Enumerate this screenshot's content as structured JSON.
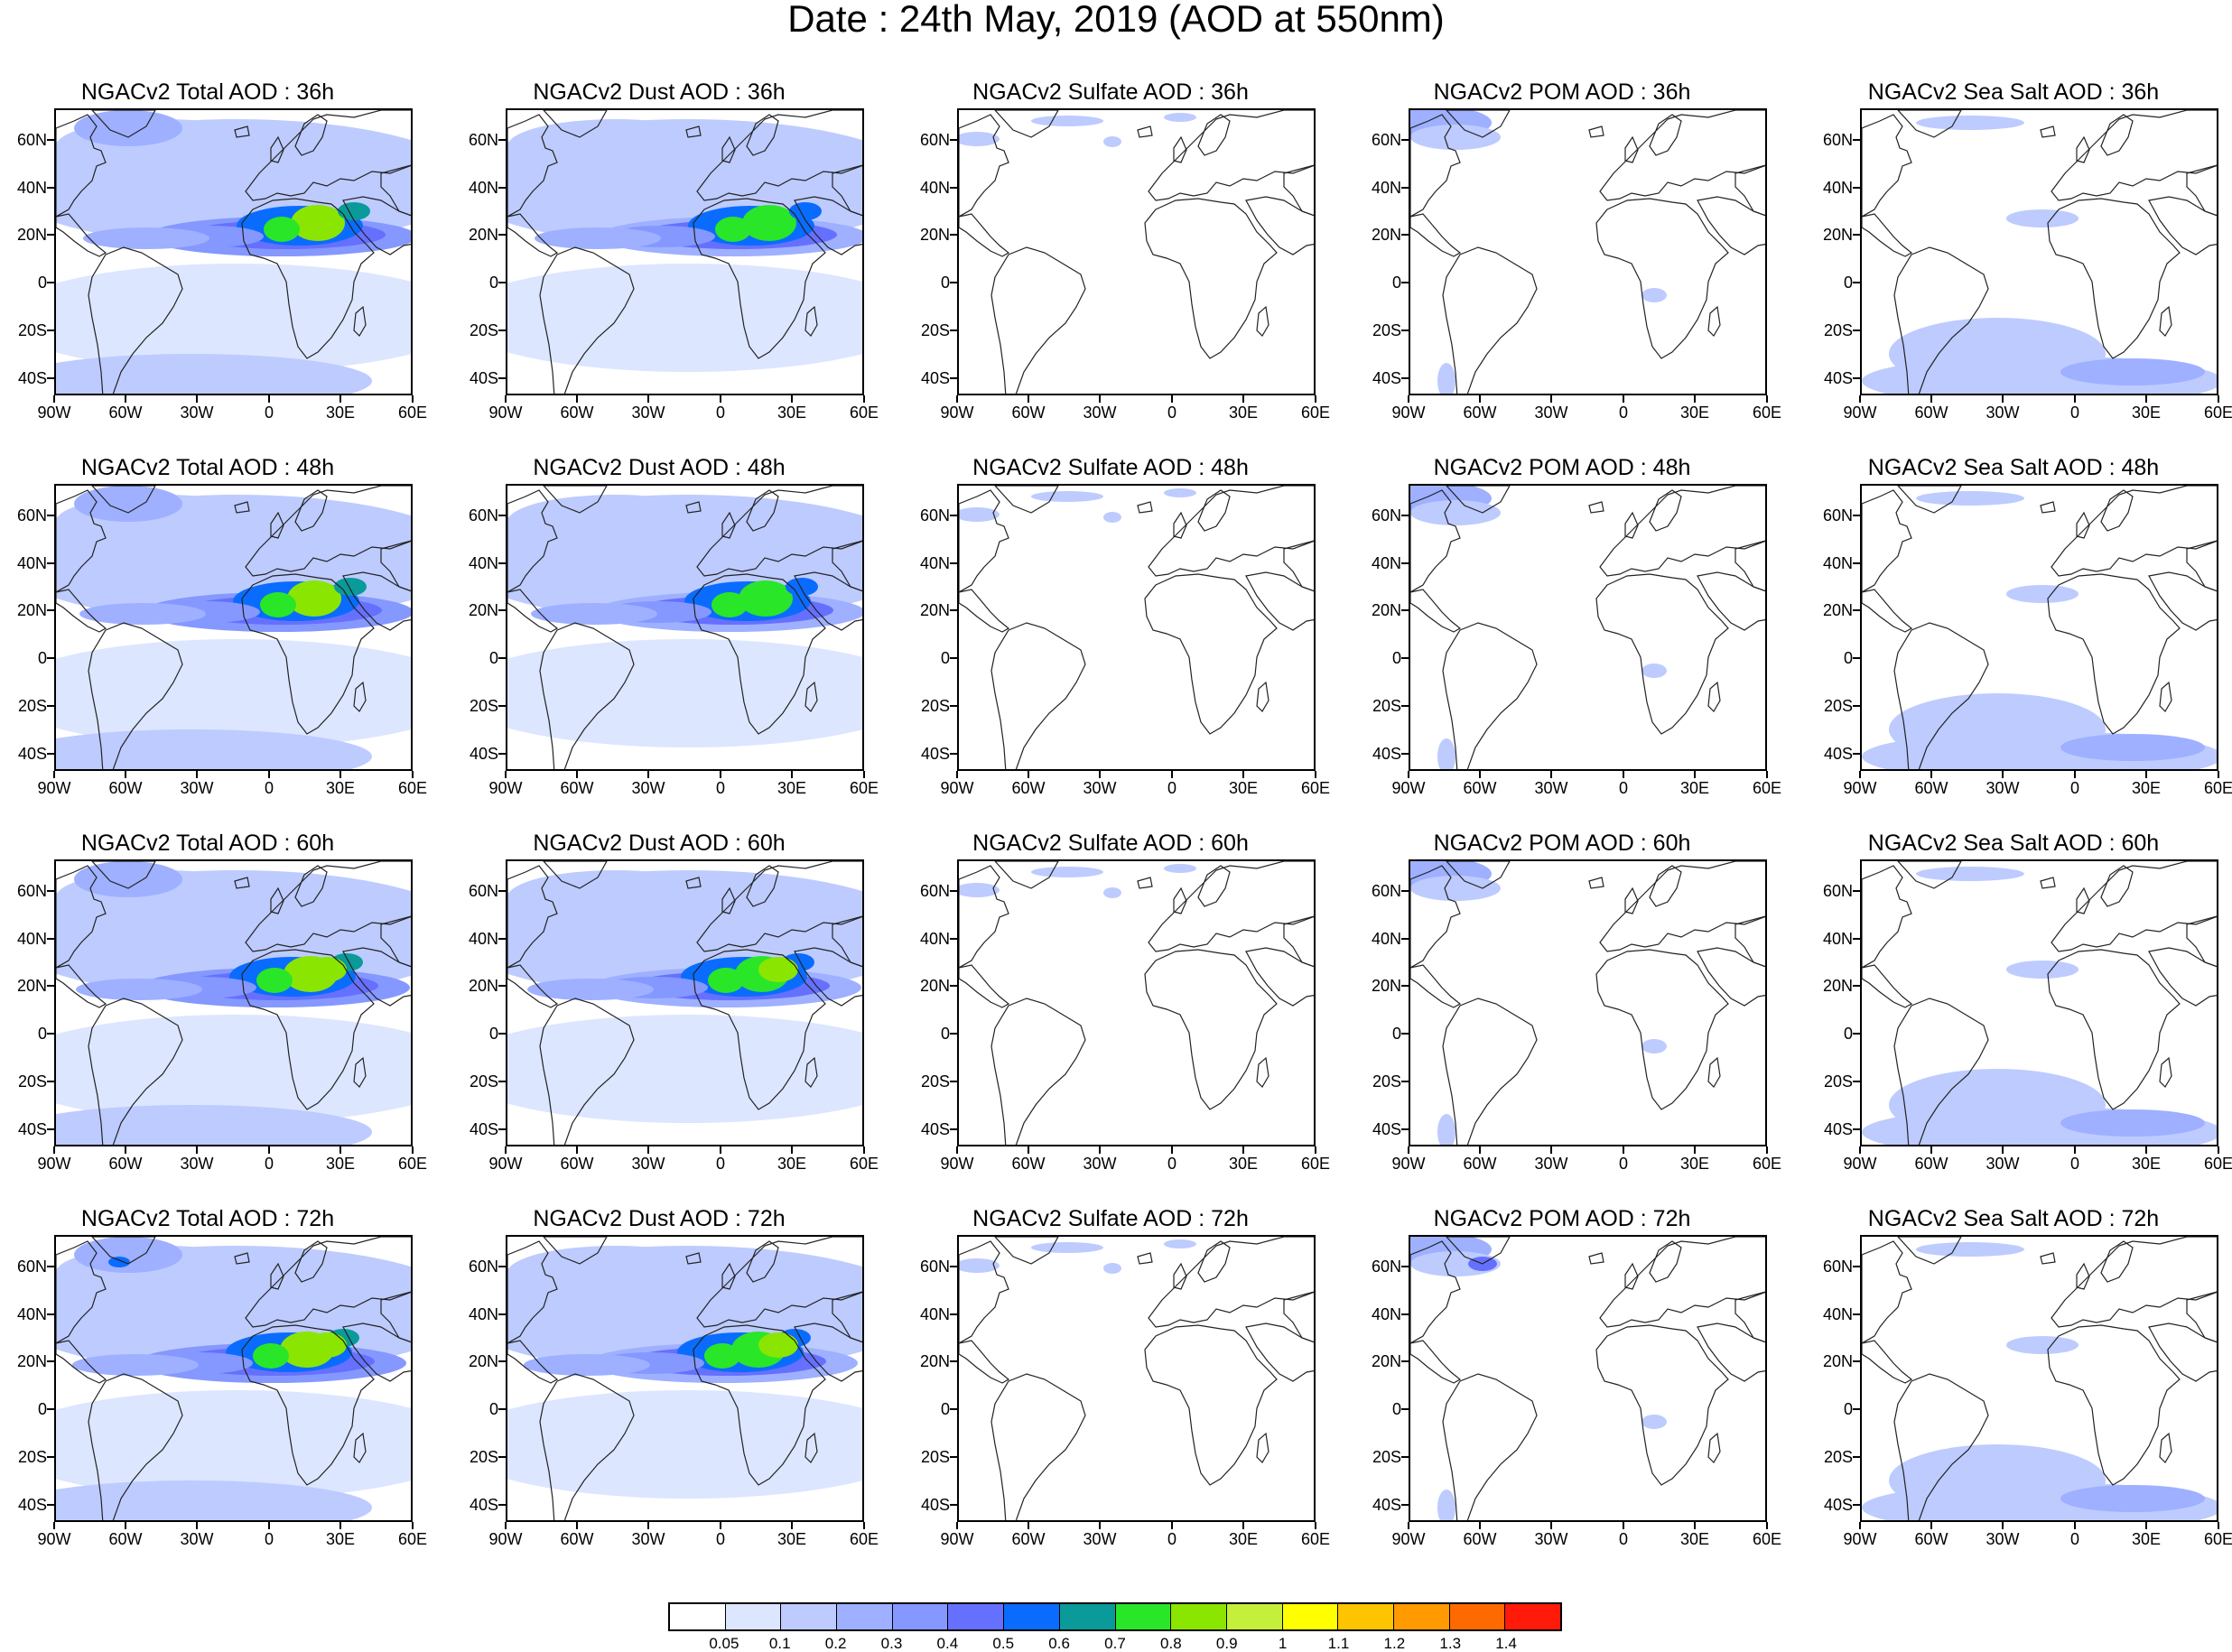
{
  "title": "Date : 24th May, 2019 (AOD at 550nm)",
  "lat_labels": [
    "60N",
    "40N",
    "20N",
    "0",
    "20S",
    "40S"
  ],
  "lon_labels": [
    "90W",
    "60W",
    "30W",
    "0",
    "30E",
    "60E"
  ],
  "panels": [
    {
      "title": "NGACv2 Total AOD : 36h",
      "species": "total",
      "lead": 36
    },
    {
      "title": "NGACv2 Dust AOD : 36h",
      "species": "dust",
      "lead": 36
    },
    {
      "title": "NGACv2 Sulfate AOD : 36h",
      "species": "sulfate",
      "lead": 36
    },
    {
      "title": "NGACv2 POM AOD : 36h",
      "species": "pom",
      "lead": 36
    },
    {
      "title": "NGACv2 Sea Salt AOD : 36h",
      "species": "seasalt",
      "lead": 36
    },
    {
      "title": "NGACv2 Total AOD : 48h",
      "species": "total",
      "lead": 48
    },
    {
      "title": "NGACv2 Dust AOD : 48h",
      "species": "dust",
      "lead": 48
    },
    {
      "title": "NGACv2 Sulfate AOD : 48h",
      "species": "sulfate",
      "lead": 48
    },
    {
      "title": "NGACv2 POM AOD : 48h",
      "species": "pom",
      "lead": 48
    },
    {
      "title": "NGACv2 Sea Salt AOD : 48h",
      "species": "seasalt",
      "lead": 48
    },
    {
      "title": "NGACv2 Total AOD : 60h",
      "species": "total",
      "lead": 60
    },
    {
      "title": "NGACv2 Dust AOD : 60h",
      "species": "dust",
      "lead": 60
    },
    {
      "title": "NGACv2 Sulfate AOD : 60h",
      "species": "sulfate",
      "lead": 60
    },
    {
      "title": "NGACv2 POM AOD : 60h",
      "species": "pom",
      "lead": 60
    },
    {
      "title": "NGACv2 Sea Salt AOD : 60h",
      "species": "seasalt",
      "lead": 60
    },
    {
      "title": "NGACv2 Total AOD : 72h",
      "species": "total",
      "lead": 72
    },
    {
      "title": "NGACv2 Dust AOD : 72h",
      "species": "dust",
      "lead": 72
    },
    {
      "title": "NGACv2 Sulfate AOD : 72h",
      "species": "sulfate",
      "lead": 72
    },
    {
      "title": "NGACv2 POM AOD : 72h",
      "species": "pom",
      "lead": 72
    },
    {
      "title": "NGACv2 Sea Salt  AOD : 72h",
      "species": "seasalt",
      "lead": 72
    }
  ],
  "colorbar": {
    "labels": [
      "0.05",
      "0.1",
      "0.2",
      "0.3",
      "0.4",
      "0.5",
      "0.6",
      "0.7",
      "0.8",
      "0.9",
      "1",
      "1.1",
      "1.2",
      "1.3",
      "1.4"
    ],
    "colors": [
      "#ffffff",
      "#dce6ff",
      "#bdcbff",
      "#9eb0ff",
      "#8598ff",
      "#6670ff",
      "#0a6cff",
      "#0a9a9a",
      "#29e629",
      "#8ae600",
      "#c4ef3a",
      "#ffff00",
      "#ffc400",
      "#ff9a00",
      "#ff6a00",
      "#ff1a0a"
    ]
  }
}
